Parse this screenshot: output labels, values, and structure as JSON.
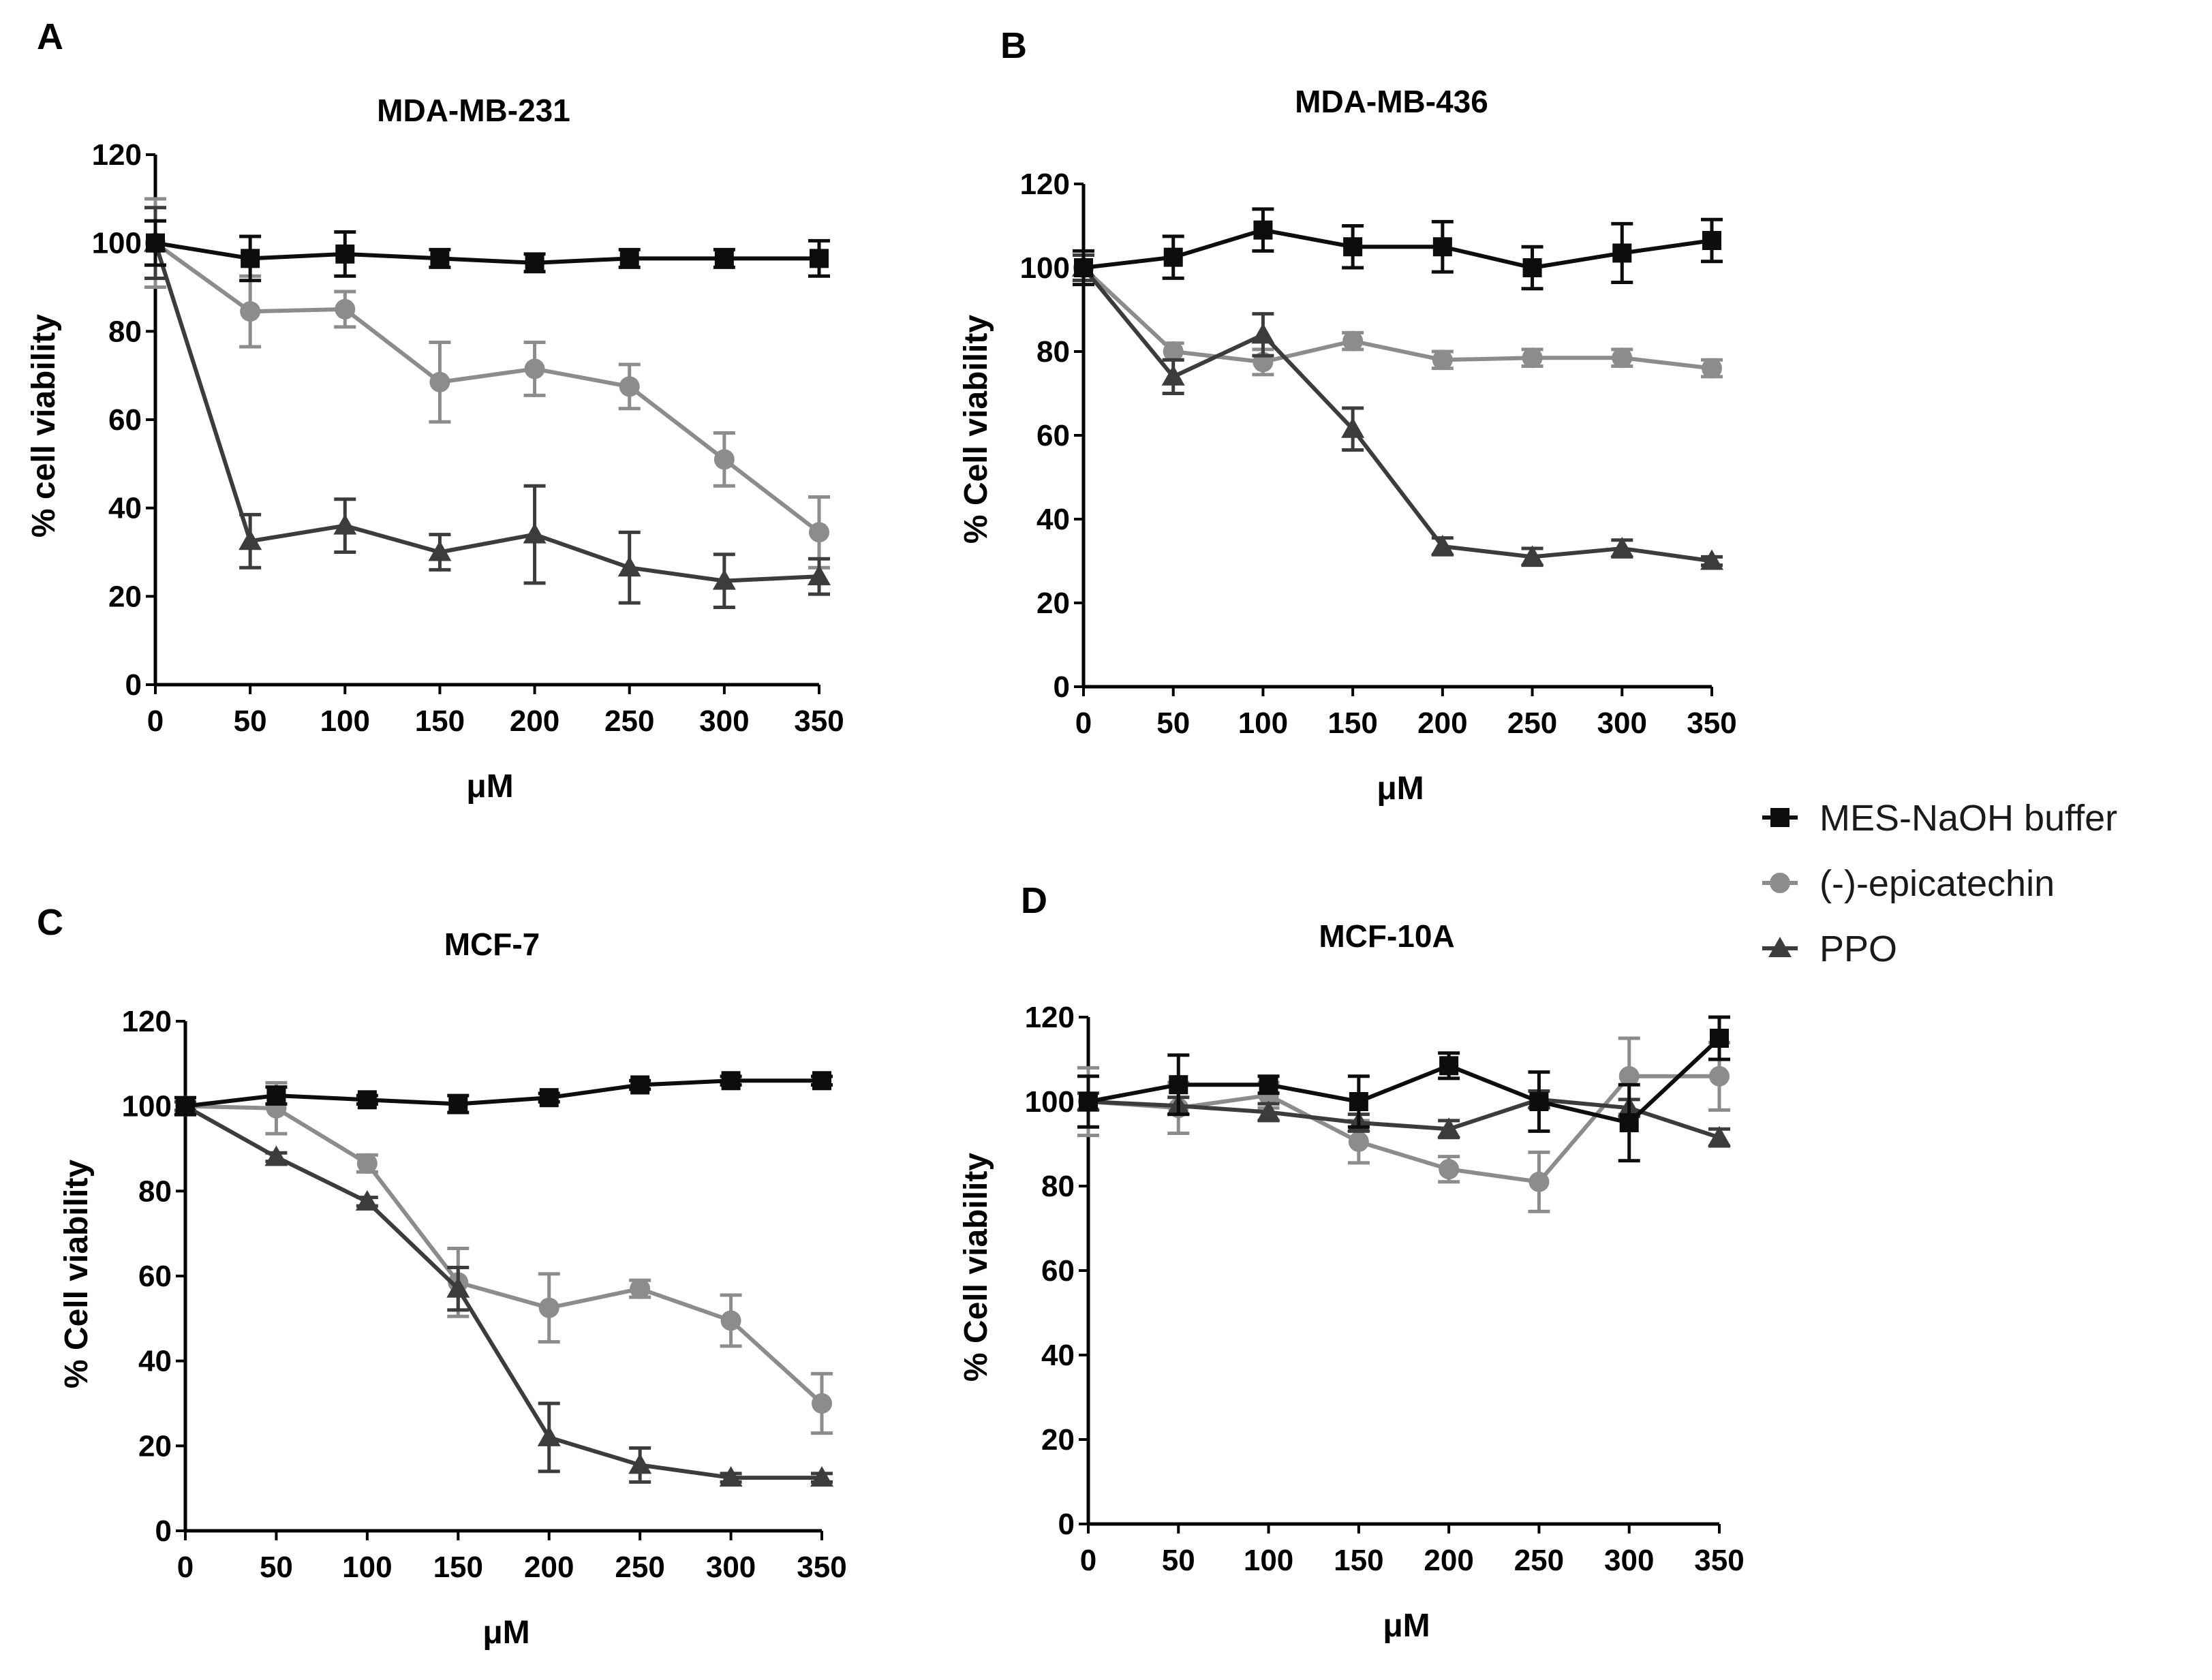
{
  "figure": {
    "legend": [
      {
        "name": "MES-NaOH buffer",
        "color": "#0d0d0d",
        "marker": "square"
      },
      {
        "name": "(-)-epicatechin",
        "color": "#8c8c8c",
        "marker": "circle"
      },
      {
        "name": "PPO",
        "color": "#3c3c3c",
        "marker": "triangle"
      }
    ]
  },
  "chart_data": [
    {
      "panel": "A",
      "type": "line",
      "title": "MDA-MB-231",
      "xlabel": "μM",
      "ylabel": "% cell viability",
      "x": [
        0,
        50,
        100,
        150,
        200,
        250,
        300,
        350
      ],
      "xticks": [
        "0",
        "50",
        "100",
        "150",
        "200",
        "250",
        "300",
        "350"
      ],
      "yticks": [
        "0",
        "20",
        "40",
        "60",
        "80",
        "100",
        "120"
      ],
      "xlim": [
        0,
        350
      ],
      "ylim": [
        0,
        120
      ],
      "grid": false,
      "series": [
        {
          "name": "MES-NaOH buffer",
          "values": [
            100,
            96.5,
            97.5,
            96.5,
            95.5,
            96.5,
            96.5,
            96.5
          ],
          "errors": [
            5,
            5,
            5,
            2,
            2,
            2,
            2,
            4
          ]
        },
        {
          "name": "(-)-epicatechin",
          "values": [
            100,
            84.5,
            85,
            68.5,
            71.5,
            67.5,
            51,
            34.5
          ],
          "errors": [
            10,
            8,
            4,
            9,
            6,
            5,
            6,
            8
          ]
        },
        {
          "name": "PPO",
          "values": [
            100,
            32.5,
            36,
            30,
            34,
            26.5,
            23.5,
            24.5
          ],
          "errors": [
            8,
            6,
            6,
            4,
            11,
            8,
            6,
            4
          ]
        }
      ]
    },
    {
      "panel": "B",
      "type": "line",
      "title": "MDA-MB-436",
      "xlabel": "μM",
      "ylabel": "% Cell viability",
      "x": [
        0,
        50,
        100,
        150,
        200,
        250,
        300,
        350
      ],
      "xticks": [
        "0",
        "50",
        "100",
        "150",
        "200",
        "250",
        "300",
        "350"
      ],
      "yticks": [
        "0",
        "20",
        "40",
        "60",
        "80",
        "100",
        "120"
      ],
      "xlim": [
        0,
        350
      ],
      "ylim": [
        0,
        120
      ],
      "grid": false,
      "series": [
        {
          "name": "MES-NaOH buffer",
          "values": [
            100,
            102.5,
            109,
            105,
            105,
            100,
            103.5,
            106.5
          ],
          "errors": [
            4,
            5,
            5,
            5,
            6,
            5,
            7,
            5
          ]
        },
        {
          "name": "(-)-epicatechin",
          "values": [
            100,
            80,
            77.5,
            82.5,
            78,
            78.5,
            78.5,
            76
          ],
          "errors": [
            3,
            2,
            3,
            2,
            2,
            2,
            2,
            2
          ]
        },
        {
          "name": "PPO",
          "values": [
            100,
            74,
            84,
            61.5,
            33.5,
            31,
            33,
            30
          ],
          "errors": [
            3,
            4,
            5,
            5,
            2,
            2,
            2,
            1
          ]
        }
      ]
    },
    {
      "panel": "C",
      "type": "line",
      "title": "MCF-7",
      "xlabel": "μM",
      "ylabel": "% Cell viability",
      "x": [
        0,
        50,
        100,
        150,
        200,
        250,
        300,
        350
      ],
      "xticks": [
        "0",
        "50",
        "100",
        "150",
        "200",
        "250",
        "300",
        "350"
      ],
      "yticks": [
        "0",
        "20",
        "40",
        "60",
        "80",
        "100",
        "120"
      ],
      "xlim": [
        0,
        350
      ],
      "ylim": [
        0,
        120
      ],
      "grid": false,
      "series": [
        {
          "name": "MES-NaOH buffer",
          "values": [
            100,
            102.5,
            101.5,
            100.5,
            102,
            105,
            106,
            106
          ],
          "errors": [
            2,
            2,
            1,
            2,
            1,
            1,
            1,
            1
          ]
        },
        {
          "name": "(-)-epicatechin",
          "values": [
            100,
            99.5,
            86.5,
            58.5,
            52.5,
            57,
            49.5,
            30
          ],
          "errors": [
            2,
            6,
            2,
            8,
            8,
            2,
            6,
            7
          ]
        },
        {
          "name": "PPO",
          "values": [
            100,
            88,
            77.5,
            57,
            22,
            15.5,
            12.5,
            12.5
          ],
          "errors": [
            1,
            1,
            1,
            5,
            8,
            4,
            1,
            1
          ]
        }
      ]
    },
    {
      "panel": "D",
      "type": "line",
      "title": "MCF-10A",
      "xlabel": "μM",
      "ylabel": "% Cell viability",
      "x": [
        0,
        50,
        100,
        150,
        200,
        250,
        300,
        350
      ],
      "xticks": [
        "0",
        "50",
        "100",
        "150",
        "200",
        "250",
        "300",
        "350"
      ],
      "yticks": [
        "0",
        "20",
        "40",
        "60",
        "80",
        "100",
        "120"
      ],
      "xlim": [
        0,
        350
      ],
      "ylim": [
        0,
        120
      ],
      "grid": false,
      "series": [
        {
          "name": "MES-NaOH buffer",
          "values": [
            100,
            104,
            104,
            100,
            108.5,
            100,
            95,
            115
          ],
          "errors": [
            6,
            7,
            2,
            6,
            3,
            7,
            9,
            5
          ]
        },
        {
          "name": "(-)-epicatechin",
          "values": [
            100,
            98.5,
            101.5,
            90.5,
            84,
            81,
            106,
            106
          ],
          "errors": [
            8,
            6,
            3,
            5,
            3,
            7,
            9,
            8
          ]
        },
        {
          "name": "PPO",
          "values": [
            100,
            99,
            97.5,
            95,
            93.5,
            100.5,
            98.5,
            91.5
          ],
          "errors": [
            2,
            2,
            2,
            2,
            2,
            2,
            2,
            2
          ]
        }
      ]
    }
  ]
}
